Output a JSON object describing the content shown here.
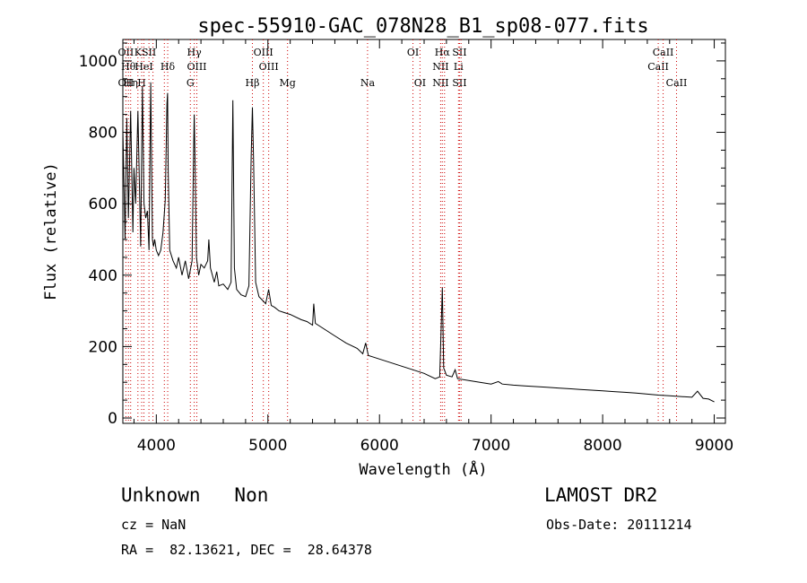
{
  "chart_data": {
    "type": "line",
    "title": "spec-55910-GAC_078N28_B1_sp08-077.fits",
    "xlabel": "Wavelength (Å)",
    "ylabel": "Flux (relative)",
    "xlim": [
      3700,
      9100
    ],
    "ylim": [
      -15,
      1060
    ],
    "x_ticks": [
      4000,
      5000,
      6000,
      7000,
      8000,
      9000
    ],
    "y_ticks": [
      0,
      200,
      400,
      600,
      800,
      1000
    ],
    "grid": false,
    "line_color": "#000000",
    "marker_line_color": "#cc0000",
    "series": [
      {
        "x": [
          3700,
          3720,
          3735,
          3750,
          3770,
          3790,
          3800,
          3815,
          3835,
          3860,
          3875,
          3890,
          3905,
          3920,
          3935,
          3950,
          3965,
          3975,
          3985,
          4000,
          4020,
          4040,
          4060,
          4080,
          4095,
          4101,
          4107,
          4120,
          4150,
          4180,
          4200,
          4230,
          4260,
          4290,
          4320,
          4335,
          4340,
          4346,
          4360,
          4380,
          4400,
          4430,
          4460,
          4471,
          4485,
          4520,
          4541,
          4560,
          4600,
          4640,
          4670,
          4686,
          4700,
          4720,
          4760,
          4800,
          4830,
          4850,
          4861,
          4872,
          4890,
          4920,
          4950,
          4980,
          5007,
          5030,
          5060,
          5100,
          5150,
          5200,
          5300,
          5350,
          5400,
          5411,
          5425,
          5500,
          5600,
          5700,
          5800,
          5850,
          5876,
          5900,
          5950,
          6000,
          6100,
          6200,
          6300,
          6400,
          6500,
          6540,
          6563,
          6575,
          6600,
          6650,
          6678,
          6700,
          6800,
          6900,
          7000,
          7065,
          7100,
          7200,
          7300,
          7400,
          7500,
          7600,
          7700,
          7800,
          7900,
          8000,
          8100,
          8200,
          8300,
          8400,
          8500,
          8600,
          8700,
          8800,
          8850,
          8900,
          8950,
          9000
        ],
        "values": [
          810,
          500,
          840,
          560,
          860,
          520,
          700,
          600,
          860,
          480,
          930,
          600,
          560,
          580,
          470,
          940,
          500,
          480,
          500,
          470,
          455,
          470,
          520,
          610,
          880,
          910,
          690,
          470,
          440,
          420,
          450,
          400,
          440,
          390,
          440,
          760,
          850,
          740,
          450,
          400,
          430,
          420,
          440,
          500,
          420,
          380,
          410,
          370,
          375,
          360,
          380,
          890,
          420,
          360,
          345,
          340,
          370,
          730,
          870,
          720,
          380,
          340,
          330,
          320,
          360,
          315,
          310,
          300,
          295,
          290,
          275,
          270,
          260,
          320,
          265,
          250,
          230,
          210,
          195,
          180,
          210,
          175,
          170,
          165,
          155,
          145,
          135,
          125,
          110,
          115,
          365,
          140,
          120,
          115,
          135,
          110,
          105,
          100,
          95,
          102,
          95,
          92,
          90,
          88,
          86,
          84,
          82,
          80,
          78,
          76,
          74,
          72,
          70,
          67,
          64,
          62,
          60,
          58,
          75,
          55,
          53,
          45
        ]
      }
    ],
    "line_markers": [
      {
        "x": 3727,
        "top": "OII",
        "bottom": "OII"
      },
      {
        "x": 3750,
        "top": "Hθ",
        "bottom": ""
      },
      {
        "x": 3770,
        "top": "",
        "bottom": "Hη"
      },
      {
        "x": 3835,
        "top": "K",
        "bottom": ""
      },
      {
        "x": 3869,
        "top": "",
        "bottom": "H"
      },
      {
        "x": 3889,
        "top": "HeI",
        "bottom": ""
      },
      {
        "x": 3934,
        "top": "SII",
        "bottom": ""
      },
      {
        "x": 3970,
        "top": "",
        "bottom": ""
      },
      {
        "x": 4072,
        "top": "",
        "bottom": ""
      },
      {
        "x": 4102,
        "top": "Hδ",
        "bottom": ""
      },
      {
        "x": 4305,
        "top": "",
        "bottom": "G"
      },
      {
        "x": 4340,
        "top": "Hγ",
        "bottom": ""
      },
      {
        "x": 4363,
        "top": "OIII",
        "bottom": ""
      },
      {
        "x": 4861,
        "top": "",
        "bottom": "Hβ"
      },
      {
        "x": 4959,
        "top": "OIII",
        "bottom": ""
      },
      {
        "x": 5007,
        "top": "OIII",
        "bottom": ""
      },
      {
        "x": 5176,
        "top": "",
        "bottom": "Mg"
      },
      {
        "x": 5893,
        "top": "",
        "bottom": "Na"
      },
      {
        "x": 6300,
        "top": "OI",
        "bottom": ""
      },
      {
        "x": 6363,
        "top": "",
        "bottom": "OI"
      },
      {
        "x": 6548,
        "top": "NII",
        "bottom": "NII"
      },
      {
        "x": 6563,
        "top": "Hα",
        "bottom": ""
      },
      {
        "x": 6583,
        "top": "",
        "bottom": ""
      },
      {
        "x": 6708,
        "top": "Li",
        "bottom": ""
      },
      {
        "x": 6717,
        "top": "SII",
        "bottom": "SII"
      },
      {
        "x": 6731,
        "top": "",
        "bottom": ""
      },
      {
        "x": 8498,
        "top": "CaII",
        "bottom": ""
      },
      {
        "x": 8542,
        "top": "CaII",
        "bottom": ""
      },
      {
        "x": 8662,
        "top": "",
        "bottom": "CaII"
      }
    ]
  },
  "info": {
    "class_line": "Unknown   Non",
    "survey": "LAMOST DR2",
    "cz": "cz = NaN",
    "obs_date": "Obs-Date: 20111214",
    "coords": "RA =  82.13621, DEC =  28.64378"
  }
}
